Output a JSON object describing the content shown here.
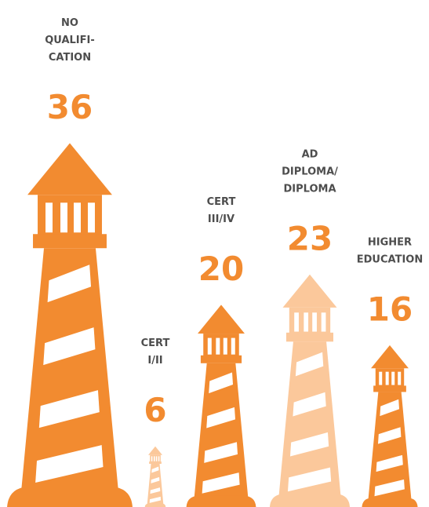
{
  "chart_data": {
    "type": "pictorial-bar",
    "categories": [
      [
        "NO",
        "QUALIFI-",
        "CATION"
      ],
      [
        "CERT",
        "I/II"
      ],
      [
        "CERT",
        "III/IV"
      ],
      [
        "AD",
        "DIPLOMA/",
        "DIPLOMA"
      ],
      [
        "HIGHER",
        "EDUCATION"
      ]
    ],
    "values": [
      36,
      6,
      20,
      23,
      16
    ],
    "colors": [
      "#f28b30",
      "#fbc89b",
      "#f28b30",
      "#fbc89b",
      "#f28b30"
    ],
    "value_color": "#f28b30"
  }
}
